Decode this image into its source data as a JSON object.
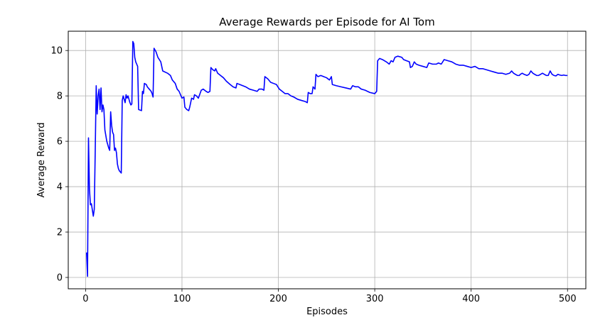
{
  "chart_data": {
    "type": "line",
    "title": "Average Rewards per Episode for AI Tom",
    "xlabel": "Episodes",
    "ylabel": "Average Reward",
    "xlim": [
      -18,
      519
    ],
    "ylim": [
      -0.5,
      10.85
    ],
    "xticks": [
      0,
      100,
      200,
      300,
      400,
      500
    ],
    "yticks": [
      0,
      2,
      4,
      6,
      8,
      10
    ],
    "grid": true,
    "line_color": "#0000ff",
    "series": [
      {
        "values": [
          [
            1,
            1.1
          ],
          [
            2,
            0.05
          ],
          [
            3,
            6.15
          ],
          [
            4,
            3.9
          ],
          [
            5,
            3.2
          ],
          [
            6,
            3.25
          ],
          [
            8,
            2.7
          ],
          [
            9,
            3.0
          ],
          [
            10,
            5.6
          ],
          [
            11,
            8.45
          ],
          [
            12,
            7.2
          ],
          [
            13,
            8.0
          ],
          [
            14,
            8.3
          ],
          [
            15,
            7.4
          ],
          [
            16,
            8.35
          ],
          [
            17,
            7.3
          ],
          [
            18,
            7.6
          ],
          [
            19,
            7.4
          ],
          [
            20,
            6.5
          ],
          [
            22,
            6.0
          ],
          [
            24,
            5.7
          ],
          [
            25,
            5.6
          ],
          [
            26,
            7.3
          ],
          [
            27,
            6.7
          ],
          [
            28,
            6.4
          ],
          [
            29,
            6.3
          ],
          [
            30,
            5.6
          ],
          [
            31,
            5.7
          ],
          [
            32,
            5.5
          ],
          [
            33,
            5.0
          ],
          [
            34,
            4.8
          ],
          [
            35,
            4.7
          ],
          [
            36,
            4.65
          ],
          [
            37,
            4.6
          ],
          [
            38,
            7.8
          ],
          [
            39,
            8.0
          ],
          [
            41,
            7.7
          ],
          [
            42,
            8.05
          ],
          [
            43,
            7.9
          ],
          [
            44,
            8.0
          ],
          [
            45,
            7.85
          ],
          [
            46,
            7.7
          ],
          [
            47,
            7.6
          ],
          [
            48,
            7.65
          ],
          [
            49,
            10.4
          ],
          [
            50,
            10.3
          ],
          [
            51,
            9.7
          ],
          [
            52,
            9.5
          ],
          [
            53,
            9.4
          ],
          [
            54,
            9.3
          ],
          [
            55,
            7.4
          ],
          [
            58,
            7.35
          ],
          [
            59,
            8.2
          ],
          [
            60,
            8.1
          ],
          [
            61,
            8.55
          ],
          [
            63,
            8.5
          ],
          [
            64,
            8.4
          ],
          [
            66,
            8.3
          ],
          [
            68,
            8.2
          ],
          [
            69,
            8.1
          ],
          [
            70,
            7.95
          ],
          [
            71,
            10.1
          ],
          [
            73,
            9.95
          ],
          [
            75,
            9.7
          ],
          [
            78,
            9.5
          ],
          [
            80,
            9.1
          ],
          [
            85,
            9.0
          ],
          [
            88,
            8.9
          ],
          [
            90,
            8.7
          ],
          [
            93,
            8.55
          ],
          [
            95,
            8.3
          ],
          [
            97,
            8.2
          ],
          [
            99,
            8.0
          ],
          [
            100,
            7.9
          ],
          [
            102,
            7.95
          ],
          [
            103,
            7.5
          ],
          [
            105,
            7.4
          ],
          [
            107,
            7.35
          ],
          [
            108,
            7.5
          ],
          [
            110,
            7.9
          ],
          [
            112,
            7.85
          ],
          [
            113,
            8.05
          ],
          [
            115,
            8.0
          ],
          [
            117,
            7.9
          ],
          [
            120,
            8.25
          ],
          [
            122,
            8.3
          ],
          [
            125,
            8.2
          ],
          [
            127,
            8.15
          ],
          [
            129,
            8.2
          ],
          [
            130,
            9.25
          ],
          [
            132,
            9.15
          ],
          [
            134,
            9.1
          ],
          [
            135,
            9.2
          ],
          [
            137,
            9.0
          ],
          [
            140,
            8.9
          ],
          [
            143,
            8.8
          ],
          [
            146,
            8.65
          ],
          [
            150,
            8.5
          ],
          [
            153,
            8.4
          ],
          [
            156,
            8.35
          ],
          [
            157,
            8.55
          ],
          [
            160,
            8.5
          ],
          [
            163,
            8.45
          ],
          [
            166,
            8.4
          ],
          [
            170,
            8.3
          ],
          [
            174,
            8.25
          ],
          [
            178,
            8.2
          ],
          [
            180,
            8.3
          ],
          [
            183,
            8.3
          ],
          [
            185,
            8.25
          ],
          [
            186,
            8.85
          ],
          [
            189,
            8.75
          ],
          [
            192,
            8.6
          ],
          [
            195,
            8.55
          ],
          [
            198,
            8.5
          ],
          [
            201,
            8.3
          ],
          [
            204,
            8.2
          ],
          [
            207,
            8.1
          ],
          [
            210,
            8.1
          ],
          [
            213,
            8.0
          ],
          [
            216,
            7.95
          ],
          [
            220,
            7.85
          ],
          [
            224,
            7.8
          ],
          [
            228,
            7.75
          ],
          [
            230,
            7.7
          ],
          [
            231,
            8.15
          ],
          [
            233,
            8.1
          ],
          [
            235,
            8.1
          ],
          [
            236,
            8.4
          ],
          [
            238,
            8.3
          ],
          [
            239,
            8.95
          ],
          [
            241,
            8.85
          ],
          [
            244,
            8.9
          ],
          [
            247,
            8.85
          ],
          [
            250,
            8.8
          ],
          [
            253,
            8.7
          ],
          [
            255,
            8.85
          ],
          [
            256,
            8.5
          ],
          [
            260,
            8.45
          ],
          [
            265,
            8.4
          ],
          [
            270,
            8.35
          ],
          [
            275,
            8.3
          ],
          [
            277,
            8.45
          ],
          [
            280,
            8.4
          ],
          [
            283,
            8.4
          ],
          [
            286,
            8.3
          ],
          [
            290,
            8.25
          ],
          [
            295,
            8.15
          ],
          [
            300,
            8.1
          ],
          [
            302,
            8.2
          ],
          [
            303,
            9.55
          ],
          [
            305,
            9.65
          ],
          [
            308,
            9.6
          ],
          [
            312,
            9.5
          ],
          [
            315,
            9.4
          ],
          [
            317,
            9.55
          ],
          [
            319,
            9.5
          ],
          [
            321,
            9.7
          ],
          [
            324,
            9.75
          ],
          [
            328,
            9.7
          ],
          [
            330,
            9.6
          ],
          [
            333,
            9.55
          ],
          [
            336,
            9.5
          ],
          [
            337,
            9.25
          ],
          [
            339,
            9.3
          ],
          [
            341,
            9.5
          ],
          [
            343,
            9.4
          ],
          [
            346,
            9.35
          ],
          [
            350,
            9.3
          ],
          [
            354,
            9.25
          ],
          [
            356,
            9.45
          ],
          [
            360,
            9.4
          ],
          [
            364,
            9.4
          ],
          [
            366,
            9.45
          ],
          [
            369,
            9.4
          ],
          [
            372,
            9.6
          ],
          [
            376,
            9.55
          ],
          [
            380,
            9.5
          ],
          [
            384,
            9.4
          ],
          [
            388,
            9.35
          ],
          [
            392,
            9.35
          ],
          [
            396,
            9.3
          ],
          [
            400,
            9.25
          ],
          [
            404,
            9.3
          ],
          [
            408,
            9.2
          ],
          [
            412,
            9.2
          ],
          [
            416,
            9.15
          ],
          [
            420,
            9.1
          ],
          [
            424,
            9.05
          ],
          [
            428,
            9.0
          ],
          [
            432,
            9.0
          ],
          [
            436,
            8.95
          ],
          [
            440,
            9.0
          ],
          [
            442,
            9.1
          ],
          [
            444,
            9.0
          ],
          [
            446,
            8.95
          ],
          [
            448,
            8.9
          ],
          [
            450,
            8.9
          ],
          [
            451,
            8.95
          ],
          [
            453,
            9.0
          ],
          [
            455,
            8.95
          ],
          [
            458,
            8.9
          ],
          [
            460,
            8.95
          ],
          [
            462,
            9.1
          ],
          [
            464,
            9.0
          ],
          [
            466,
            8.95
          ],
          [
            468,
            8.9
          ],
          [
            470,
            8.9
          ],
          [
            472,
            8.95
          ],
          [
            474,
            9.0
          ],
          [
            476,
            8.95
          ],
          [
            478,
            8.9
          ],
          [
            480,
            8.9
          ],
          [
            482,
            9.1
          ],
          [
            484,
            8.95
          ],
          [
            486,
            8.9
          ],
          [
            488,
            8.88
          ],
          [
            490,
            8.95
          ],
          [
            492,
            8.92
          ],
          [
            494,
            8.9
          ],
          [
            496,
            8.92
          ],
          [
            498,
            8.9
          ],
          [
            500,
            8.9
          ]
        ]
      }
    ]
  }
}
